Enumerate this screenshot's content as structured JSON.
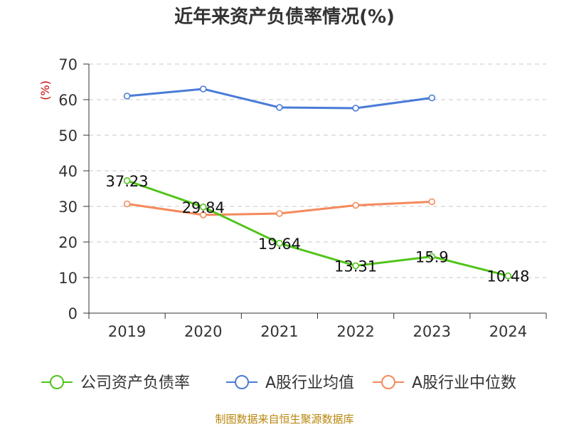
{
  "chart_data": {
    "type": "line",
    "title": "近年来资产负债率情况(%)",
    "ylabel": "(%)",
    "xlabel": "",
    "categories": [
      "2019",
      "2020",
      "2021",
      "2022",
      "2023",
      "2024"
    ],
    "ylim": [
      0,
      70
    ],
    "yticks": [
      0,
      10,
      20,
      30,
      40,
      50,
      60,
      70
    ],
    "grid": true,
    "legend_position": "bottom",
    "series": [
      {
        "name": "公司资产负债率",
        "color": "#52c41a",
        "values": [
          37.23,
          29.84,
          19.64,
          13.31,
          15.9,
          10.48
        ],
        "labels": [
          "37.23",
          "29.84",
          "19.64",
          "13.31",
          "15.9",
          "10.48"
        ]
      },
      {
        "name": "A股行业均值",
        "color": "#4a7bd8",
        "values": [
          61.0,
          63.0,
          57.8,
          57.6,
          60.5,
          null
        ]
      },
      {
        "name": "A股行业中位数",
        "color": "#f5895c",
        "values": [
          30.7,
          27.6,
          28.0,
          30.3,
          31.3,
          null
        ]
      }
    ],
    "source": "制图数据来自恒生聚源数据库"
  }
}
